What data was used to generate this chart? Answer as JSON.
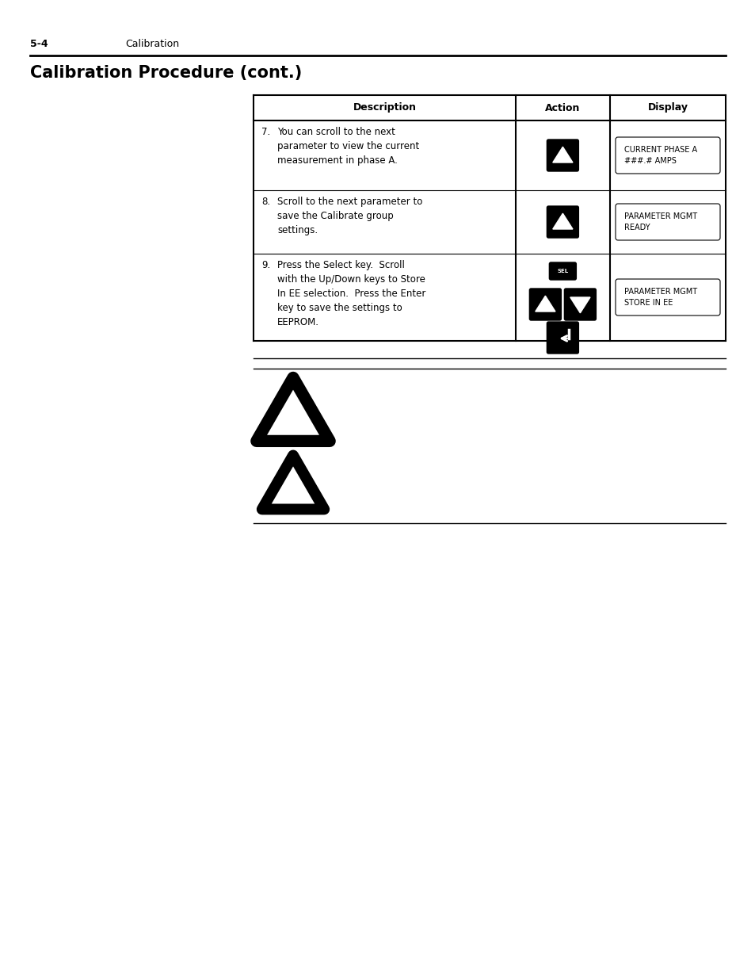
{
  "page_number": "5-4",
  "page_header_text": "Calibration",
  "title": "Calibration Procedure (cont.)",
  "table_headers": [
    "Description",
    "Action",
    "Display"
  ],
  "row7_num": "7.",
  "row7_desc": "You can scroll to the next\nparameter to view the current\nmeasurement in phase A.",
  "row7_display": "CURRENT PHASE A\n###.# AMPS",
  "row8_num": "8.",
  "row8_desc": "Scroll to the next parameter to\nsave the Calibrate group\nsettings.",
  "row8_display": "PARAMETER MGMT\nREADY",
  "row9_num": "9.",
  "row9_desc": "Press the Select key.  Scroll\nwith the Up/Down keys to Store\nIn EE selection.  Press the Enter\nkey to save the settings to\nEEPROM.",
  "row9_display": "PARAMETER MGMT\nSTORE IN EE",
  "bg_color": "#ffffff"
}
